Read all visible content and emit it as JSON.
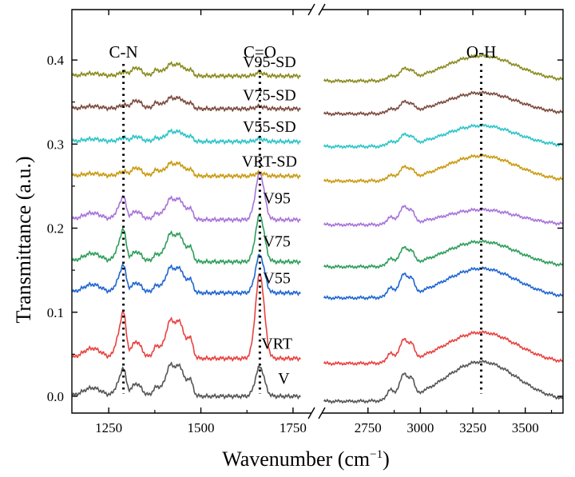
{
  "chart_data": {
    "type": "line",
    "title": "",
    "xlabel": "Wavenumber (cm",
    "xlabel_sup": "−1",
    "xlabel_close": ")",
    "ylabel": "Transmittance (a.u.)",
    "ylim": [
      -0.02,
      0.46
    ],
    "y_ticks": [
      0.0,
      0.1,
      0.2,
      0.3,
      0.4
    ],
    "y_tick_labels": [
      "0.0",
      "0.1",
      "0.2",
      "0.3",
      "0.4"
    ],
    "x_break": {
      "left_range": [
        1150,
        1800
      ],
      "right_range": [
        2530,
        3680
      ]
    },
    "x_ticks_left": [
      1250,
      1500,
      1750
    ],
    "x_tick_labels_left": [
      "1250",
      "1500",
      "1750"
    ],
    "x_ticks_right": [
      2750,
      3000,
      3250,
      3500
    ],
    "x_tick_labels_right": [
      "2750",
      "3000",
      "3250",
      "3500"
    ],
    "reference_lines": [
      {
        "label": "C-N",
        "x": 1290
      },
      {
        "label": "C=O",
        "x": 1660
      },
      {
        "label": "O-H",
        "x": 3290
      }
    ],
    "series": [
      {
        "name": "V",
        "color": "#555555",
        "baseline": 0.0,
        "peaks_left": {
          "cn": 0.03,
          "c1330": 0.015,
          "c1430": 0.037,
          "co": 0.035,
          "c1420b": 0.01
        },
        "peaks_right": {
          "ch": 0.028,
          "oh": 0.047
        }
      },
      {
        "name": "VRT",
        "color": "#e8423f",
        "baseline": 0.045,
        "peaks_left": {
          "cn": 0.05,
          "c1330": 0.02,
          "c1430": 0.045,
          "co": 0.1,
          "c1420b": 0.012
        },
        "peaks_right": {
          "ch": 0.025,
          "oh": 0.037
        }
      },
      {
        "name": "V55",
        "color": "#1f66d1",
        "baseline": 0.123,
        "peaks_left": {
          "cn": 0.03,
          "c1330": 0.012,
          "c1430": 0.03,
          "co": 0.045,
          "c1420b": 0.01
        },
        "peaks_right": {
          "ch": 0.025,
          "oh": 0.035
        }
      },
      {
        "name": "V75",
        "color": "#2e9e5b",
        "baseline": 0.16,
        "peaks_left": {
          "cn": 0.035,
          "c1330": 0.012,
          "c1430": 0.033,
          "co": 0.055,
          "c1420b": 0.01
        },
        "peaks_right": {
          "ch": 0.02,
          "oh": 0.03
        }
      },
      {
        "name": "V95",
        "color": "#a873d9",
        "baseline": 0.21,
        "peaks_left": {
          "cn": 0.025,
          "c1330": 0.01,
          "c1430": 0.025,
          "co": 0.055,
          "c1420b": 0.008
        },
        "peaks_right": {
          "ch": 0.02,
          "oh": 0.018
        }
      },
      {
        "name": "VRT-SD",
        "color": "#c99a10",
        "baseline": 0.262,
        "peaks_left": {
          "cn": 0.005,
          "c1330": 0.01,
          "c1430": 0.015,
          "co": 0.004,
          "c1420b": 0.003
        },
        "peaks_right": {
          "ch": 0.014,
          "oh": 0.03
        }
      },
      {
        "name": "V55-SD",
        "color": "#2cc4c8",
        "baseline": 0.303,
        "peaks_left": {
          "cn": 0.004,
          "c1330": 0.006,
          "c1430": 0.012,
          "co": 0.003,
          "c1420b": 0.003
        },
        "peaks_right": {
          "ch": 0.012,
          "oh": 0.025
        }
      },
      {
        "name": "V75-SD",
        "color": "#7b4a3d",
        "baseline": 0.342,
        "peaks_left": {
          "cn": 0.004,
          "c1330": 0.01,
          "c1430": 0.013,
          "co": 0.003,
          "c1420b": 0.003
        },
        "peaks_right": {
          "ch": 0.012,
          "oh": 0.025
        }
      },
      {
        "name": "V95-SD",
        "color": "#8a8a1e",
        "baseline": 0.381,
        "peaks_left": {
          "cn": 0.004,
          "c1330": 0.01,
          "c1430": 0.014,
          "co": 0.004,
          "c1420b": 0.003
        },
        "peaks_right": {
          "ch": 0.012,
          "oh": 0.03
        }
      }
    ]
  }
}
